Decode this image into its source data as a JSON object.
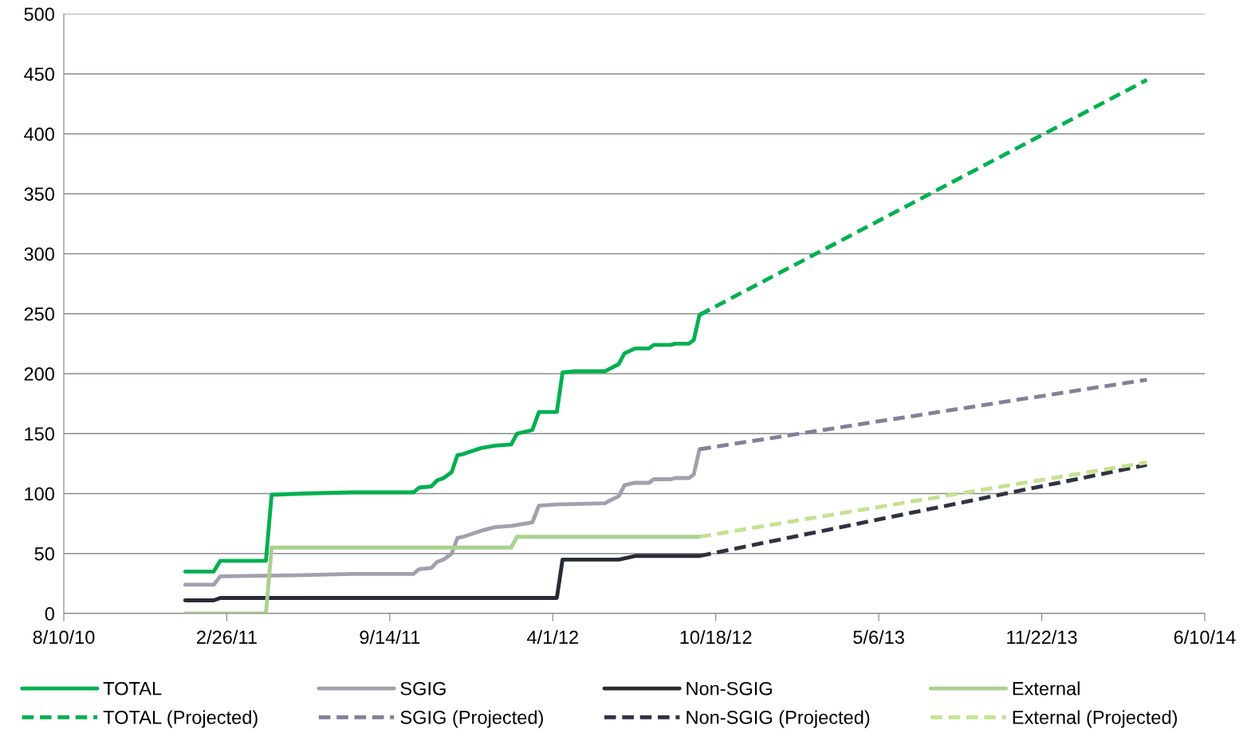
{
  "chart_data": {
    "type": "line",
    "xlim": [
      "2010-08-10",
      "2014-06-10"
    ],
    "xticks": [
      {
        "value": "2010-08-10",
        "label": "8/10/10"
      },
      {
        "value": "2011-02-26",
        "label": "2/26/11"
      },
      {
        "value": "2011-09-14",
        "label": "9/14/11"
      },
      {
        "value": "2012-04-01",
        "label": "4/1/12"
      },
      {
        "value": "2012-10-18",
        "label": "10/18/12"
      },
      {
        "value": "2013-05-06",
        "label": "5/6/13"
      },
      {
        "value": "2013-11-22",
        "label": "11/22/13"
      },
      {
        "value": "2014-06-10",
        "label": "6/10/14"
      }
    ],
    "ylim": [
      0,
      500
    ],
    "yticks": [
      0,
      50,
      100,
      150,
      200,
      250,
      300,
      350,
      400,
      450,
      500
    ],
    "grid": "y",
    "legend": "bottom",
    "marker": "none",
    "series": [
      {
        "name": "TOTAL",
        "color": "#00b050",
        "line_style": "solid",
        "x": [
          "2011-01-06",
          "2011-02-10",
          "2011-02-18",
          "2011-04-15",
          "2011-04-22",
          "2011-05-29",
          "2011-07-29",
          "2011-10-13",
          "2011-10-20",
          "2011-11-04",
          "2011-11-11",
          "2011-11-19",
          "2011-11-29",
          "2011-12-06",
          "2011-12-13",
          "2012-01-04",
          "2012-01-21",
          "2012-02-10",
          "2012-02-17",
          "2012-03-07",
          "2012-03-15",
          "2012-04-06",
          "2012-04-13",
          "2012-04-28",
          "2012-06-04",
          "2012-06-21",
          "2012-06-28",
          "2012-07-11",
          "2012-07-28",
          "2012-08-03",
          "2012-08-24",
          "2012-08-29",
          "2012-09-15",
          "2012-09-21",
          "2012-09-28"
        ],
        "values": [
          35,
          35,
          44,
          44,
          99,
          100,
          101,
          101,
          105,
          106,
          111,
          113,
          118,
          132,
          133,
          138,
          140,
          141,
          150,
          153,
          168,
          168,
          201,
          202,
          202,
          208,
          217,
          221,
          221,
          224,
          224,
          225,
          225,
          228,
          249
        ]
      },
      {
        "name": "TOTAL (Projected)",
        "color": "#00b050",
        "line_style": "dashed",
        "x": [
          "2012-09-28",
          "2014-03-31"
        ],
        "values": [
          249,
          445
        ]
      },
      {
        "name": "SGIG",
        "color": "#a0a0ae",
        "line_style": "solid",
        "x": [
          "2011-01-06",
          "2011-02-10",
          "2011-02-18",
          "2011-05-29",
          "2011-07-29",
          "2011-10-13",
          "2011-10-20",
          "2011-11-04",
          "2011-11-11",
          "2011-11-19",
          "2011-11-29",
          "2011-12-06",
          "2011-12-13",
          "2012-01-04",
          "2012-01-21",
          "2012-02-10",
          "2012-03-07",
          "2012-03-15",
          "2012-04-06",
          "2012-06-04",
          "2012-06-21",
          "2012-06-28",
          "2012-07-11",
          "2012-07-28",
          "2012-08-03",
          "2012-08-24",
          "2012-08-29",
          "2012-09-15",
          "2012-09-21",
          "2012-09-28"
        ],
        "values": [
          24,
          24,
          31,
          32,
          33,
          33,
          37,
          38,
          43,
          45,
          50,
          63,
          64,
          69,
          72,
          73,
          76,
          90,
          91,
          92,
          98,
          107,
          109,
          109,
          112,
          112,
          113,
          113,
          116,
          137
        ]
      },
      {
        "name": "SGIG (Projected)",
        "color": "#7f8296",
        "line_style": "dashed",
        "x": [
          "2012-09-28",
          "2014-03-31"
        ],
        "values": [
          137,
          195
        ]
      },
      {
        "name": "Non-SGIG",
        "color": "#262b36",
        "line_style": "solid",
        "x": [
          "2011-01-06",
          "2011-02-10",
          "2011-02-18",
          "2012-04-06",
          "2012-04-13",
          "2012-06-21",
          "2012-07-11",
          "2012-09-28"
        ],
        "values": [
          11,
          11,
          13,
          13,
          45,
          45,
          48,
          48
        ]
      },
      {
        "name": "Non-SGIG (Projected)",
        "color": "#2f3340",
        "line_style": "dashed",
        "x": [
          "2012-09-28",
          "2014-03-31"
        ],
        "values": [
          48,
          124
        ]
      },
      {
        "name": "External",
        "color": "#a9d18e",
        "line_style": "solid",
        "x": [
          "2011-01-06",
          "2011-04-15",
          "2011-04-22",
          "2012-02-10",
          "2012-02-17",
          "2012-09-28"
        ],
        "values": [
          0,
          0,
          55,
          55,
          64,
          64
        ]
      },
      {
        "name": "External (Projected)",
        "color": "#c4e28f",
        "line_style": "dashed",
        "x": [
          "2012-09-28",
          "2014-03-31"
        ],
        "values": [
          64,
          126
        ]
      }
    ]
  }
}
